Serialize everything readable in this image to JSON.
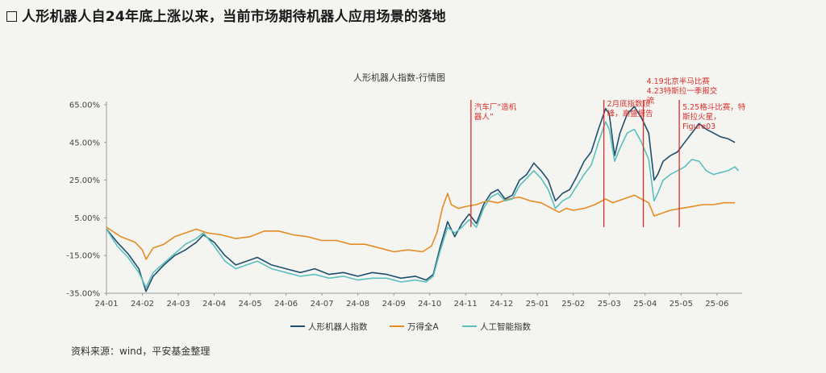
{
  "page": {
    "heading": "人形机器人自24年底上涨以来，当前市场期待机器人应用场景的落地",
    "source": "资料来源：wind，平安基金整理"
  },
  "chart_data": {
    "type": "line",
    "title": "人形机器人指数-行情图",
    "xlabel": "",
    "ylabel": "",
    "x_ticks": [
      "24-01",
      "24-02",
      "24-03",
      "24-04",
      "24-05",
      "24-06",
      "24-07",
      "24-08",
      "24-09",
      "24-10",
      "24-11",
      "24-12",
      "25-01",
      "25-02",
      "25-03",
      "25-04",
      "25-05",
      "25-06"
    ],
    "y_ticks": [
      "65.00%",
      "45.00%",
      "25.00%",
      "5.00%",
      "-15.00%",
      "-35.00%"
    ],
    "ylim": [
      -35,
      65
    ],
    "xlim": [
      0,
      17.7
    ],
    "grid": false,
    "legend_position": "bottom",
    "series": [
      {
        "name": "人形机器人指数",
        "color": "#1f4e6e",
        "points": [
          [
            0,
            -1
          ],
          [
            0.3,
            -8
          ],
          [
            0.6,
            -14
          ],
          [
            0.9,
            -22
          ],
          [
            1.1,
            -34
          ],
          [
            1.3,
            -26
          ],
          [
            1.6,
            -20
          ],
          [
            1.9,
            -15
          ],
          [
            2.2,
            -12
          ],
          [
            2.5,
            -8
          ],
          [
            2.7,
            -4
          ],
          [
            3.0,
            -8
          ],
          [
            3.3,
            -15
          ],
          [
            3.6,
            -20
          ],
          [
            3.9,
            -18
          ],
          [
            4.2,
            -16
          ],
          [
            4.6,
            -20
          ],
          [
            5.0,
            -22
          ],
          [
            5.4,
            -24
          ],
          [
            5.8,
            -22
          ],
          [
            6.2,
            -25
          ],
          [
            6.6,
            -24
          ],
          [
            7.0,
            -26
          ],
          [
            7.4,
            -24
          ],
          [
            7.8,
            -25
          ],
          [
            8.2,
            -27
          ],
          [
            8.6,
            -26
          ],
          [
            8.9,
            -28
          ],
          [
            9.1,
            -25
          ],
          [
            9.3,
            -10
          ],
          [
            9.5,
            3
          ],
          [
            9.7,
            -5
          ],
          [
            9.9,
            2
          ],
          [
            10.1,
            7
          ],
          [
            10.3,
            2
          ],
          [
            10.5,
            12
          ],
          [
            10.7,
            18
          ],
          [
            10.9,
            20
          ],
          [
            11.1,
            15
          ],
          [
            11.3,
            17
          ],
          [
            11.5,
            25
          ],
          [
            11.7,
            28
          ],
          [
            11.9,
            34
          ],
          [
            12.1,
            30
          ],
          [
            12.3,
            25
          ],
          [
            12.5,
            14
          ],
          [
            12.7,
            18
          ],
          [
            12.9,
            20
          ],
          [
            13.1,
            27
          ],
          [
            13.3,
            35
          ],
          [
            13.5,
            40
          ],
          [
            13.7,
            52
          ],
          [
            13.9,
            63
          ],
          [
            14.0,
            60
          ],
          [
            14.15,
            38
          ],
          [
            14.3,
            50
          ],
          [
            14.5,
            60
          ],
          [
            14.7,
            64
          ],
          [
            14.9,
            58
          ],
          [
            15.1,
            50
          ],
          [
            15.25,
            25
          ],
          [
            15.35,
            28
          ],
          [
            15.5,
            35
          ],
          [
            15.7,
            38
          ],
          [
            15.9,
            40
          ],
          [
            16.1,
            45
          ],
          [
            16.3,
            50
          ],
          [
            16.5,
            55
          ],
          [
            16.7,
            52
          ],
          [
            16.9,
            50
          ],
          [
            17.1,
            48
          ],
          [
            17.3,
            47
          ],
          [
            17.5,
            45
          ]
        ]
      },
      {
        "name": "万得全A",
        "color": "#e58c26",
        "points": [
          [
            0,
            0
          ],
          [
            0.4,
            -5
          ],
          [
            0.8,
            -8
          ],
          [
            1.0,
            -12
          ],
          [
            1.1,
            -17
          ],
          [
            1.3,
            -11
          ],
          [
            1.6,
            -9
          ],
          [
            1.9,
            -5
          ],
          [
            2.2,
            -3
          ],
          [
            2.5,
            -1
          ],
          [
            2.8,
            -3
          ],
          [
            3.2,
            -4
          ],
          [
            3.6,
            -6
          ],
          [
            4.0,
            -5
          ],
          [
            4.4,
            -2
          ],
          [
            4.8,
            -2
          ],
          [
            5.2,
            -4
          ],
          [
            5.6,
            -5
          ],
          [
            6.0,
            -7
          ],
          [
            6.4,
            -7
          ],
          [
            6.8,
            -9
          ],
          [
            7.2,
            -9
          ],
          [
            7.6,
            -11
          ],
          [
            8.0,
            -13
          ],
          [
            8.4,
            -12
          ],
          [
            8.8,
            -13
          ],
          [
            9.05,
            -10
          ],
          [
            9.2,
            -3
          ],
          [
            9.35,
            10
          ],
          [
            9.5,
            18
          ],
          [
            9.6,
            12
          ],
          [
            9.8,
            10
          ],
          [
            10.0,
            11
          ],
          [
            10.3,
            12
          ],
          [
            10.6,
            14
          ],
          [
            10.9,
            13
          ],
          [
            11.2,
            15
          ],
          [
            11.5,
            16
          ],
          [
            11.8,
            14
          ],
          [
            12.1,
            13
          ],
          [
            12.4,
            10
          ],
          [
            12.6,
            8
          ],
          [
            12.8,
            10
          ],
          [
            13.0,
            9
          ],
          [
            13.3,
            10
          ],
          [
            13.6,
            12
          ],
          [
            13.9,
            15
          ],
          [
            14.1,
            13
          ],
          [
            14.4,
            15
          ],
          [
            14.7,
            17
          ],
          [
            14.9,
            15
          ],
          [
            15.1,
            13
          ],
          [
            15.25,
            6
          ],
          [
            15.4,
            7
          ],
          [
            15.7,
            9
          ],
          [
            16.0,
            10
          ],
          [
            16.3,
            11
          ],
          [
            16.6,
            12
          ],
          [
            16.9,
            12
          ],
          [
            17.2,
            13
          ],
          [
            17.5,
            13
          ]
        ]
      },
      {
        "name": "人工智能指数",
        "color": "#5bbfbd",
        "points": [
          [
            0,
            -1
          ],
          [
            0.3,
            -10
          ],
          [
            0.6,
            -16
          ],
          [
            0.9,
            -24
          ],
          [
            1.1,
            -32
          ],
          [
            1.3,
            -24
          ],
          [
            1.6,
            -19
          ],
          [
            1.9,
            -14
          ],
          [
            2.2,
            -9
          ],
          [
            2.5,
            -6
          ],
          [
            2.7,
            -3
          ],
          [
            3.0,
            -10
          ],
          [
            3.3,
            -18
          ],
          [
            3.6,
            -22
          ],
          [
            3.9,
            -20
          ],
          [
            4.2,
            -18
          ],
          [
            4.6,
            -22
          ],
          [
            5.0,
            -24
          ],
          [
            5.4,
            -26
          ],
          [
            5.8,
            -25
          ],
          [
            6.2,
            -27
          ],
          [
            6.6,
            -26
          ],
          [
            7.0,
            -28
          ],
          [
            7.4,
            -27
          ],
          [
            7.8,
            -27
          ],
          [
            8.2,
            -29
          ],
          [
            8.6,
            -28
          ],
          [
            8.9,
            -29
          ],
          [
            9.1,
            -26
          ],
          [
            9.3,
            -12
          ],
          [
            9.5,
            0
          ],
          [
            9.7,
            -3
          ],
          [
            9.9,
            0
          ],
          [
            10.1,
            4
          ],
          [
            10.3,
            0
          ],
          [
            10.5,
            10
          ],
          [
            10.7,
            16
          ],
          [
            10.9,
            18
          ],
          [
            11.1,
            14
          ],
          [
            11.3,
            15
          ],
          [
            11.5,
            22
          ],
          [
            11.7,
            26
          ],
          [
            11.9,
            30
          ],
          [
            12.1,
            26
          ],
          [
            12.3,
            20
          ],
          [
            12.5,
            10
          ],
          [
            12.7,
            14
          ],
          [
            12.9,
            16
          ],
          [
            13.1,
            22
          ],
          [
            13.3,
            28
          ],
          [
            13.5,
            33
          ],
          [
            13.7,
            45
          ],
          [
            13.9,
            56
          ],
          [
            14.0,
            52
          ],
          [
            14.15,
            35
          ],
          [
            14.3,
            42
          ],
          [
            14.5,
            50
          ],
          [
            14.7,
            52
          ],
          [
            14.9,
            45
          ],
          [
            15.1,
            36
          ],
          [
            15.25,
            14
          ],
          [
            15.35,
            18
          ],
          [
            15.5,
            25
          ],
          [
            15.7,
            28
          ],
          [
            15.9,
            30
          ],
          [
            16.1,
            32
          ],
          [
            16.3,
            36
          ],
          [
            16.5,
            35
          ],
          [
            16.7,
            30
          ],
          [
            16.9,
            28
          ],
          [
            17.1,
            29
          ],
          [
            17.3,
            30
          ],
          [
            17.5,
            32
          ],
          [
            17.6,
            30
          ]
        ]
      }
    ],
    "annotations": [
      {
        "x": 10.15,
        "label": "汽车厂“造机器人”",
        "lines": [
          "汽车厂“造机",
          "器人”"
        ]
      },
      {
        "x": 13.85,
        "label": "2月底指数顶峰，高盛报告",
        "lines": [
          "2月底指数顶",
          "峰，高盛报告"
        ]
      },
      {
        "x": 14.95,
        "label": "4.19北京半马比赛 4.23特斯拉一季报交流",
        "lines": [
          "4.19北京半马比赛",
          "4.23特斯拉一季报交",
          "流"
        ]
      },
      {
        "x": 15.95,
        "label": "5.25格斗比赛，特斯拉火星，Figure03",
        "lines": [
          "5.25格斗比赛，特",
          "斯拉火星，",
          "Figure03"
        ]
      }
    ],
    "annotation_color": "#d9302c"
  }
}
